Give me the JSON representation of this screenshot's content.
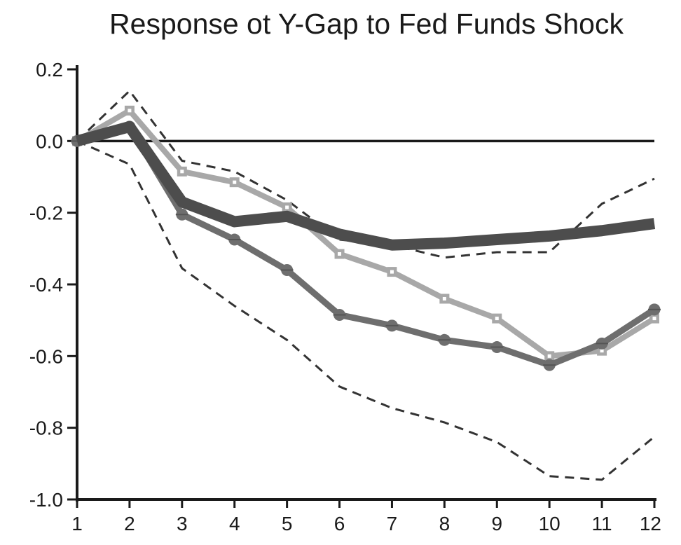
{
  "chart_data": {
    "type": "line",
    "title": "Response ot Y-Gap to Fed Funds Shock",
    "xlabel": "",
    "ylabel": "",
    "x": [
      1,
      2,
      3,
      4,
      5,
      6,
      7,
      8,
      9,
      10,
      11,
      12
    ],
    "xlim": [
      1,
      12
    ],
    "ylim": [
      -1.0,
      0.2
    ],
    "y_ticks": [
      "0.2",
      "0.0",
      "-0.2",
      "-0.4",
      "-0.6",
      "-0.8",
      "-1.0"
    ],
    "x_ticks": [
      "1",
      "2",
      "3",
      "4",
      "5",
      "6",
      "7",
      "8",
      "9",
      "10",
      "11",
      "12"
    ],
    "reference_line": 0.0,
    "grid": false,
    "legend": "none",
    "series": [
      {
        "style": "dashed-upper-band",
        "color": "#333333",
        "values": [
          0.0,
          0.14,
          -0.055,
          -0.085,
          -0.165,
          -0.275,
          -0.29,
          -0.325,
          -0.31,
          -0.31,
          -0.175,
          -0.105
        ]
      },
      {
        "style": "dashed-lower-band",
        "color": "#333333",
        "values": [
          0.0,
          -0.065,
          -0.355,
          -0.46,
          -0.555,
          -0.685,
          -0.745,
          -0.785,
          -0.84,
          -0.935,
          -0.945,
          -0.825
        ]
      },
      {
        "style": "light-gray-square-markers",
        "color": "#a8a8a8",
        "values": [
          0.0,
          0.085,
          -0.085,
          -0.115,
          -0.185,
          -0.315,
          -0.365,
          -0.44,
          -0.495,
          -0.6,
          -0.585,
          -0.495
        ]
      },
      {
        "style": "medium-gray-circle-markers",
        "color": "#6e6e6e",
        "values": [
          0.0,
          0.04,
          -0.205,
          -0.275,
          -0.36,
          -0.485,
          -0.515,
          -0.555,
          -0.575,
          -0.625,
          -0.565,
          -0.47
        ]
      },
      {
        "style": "thick-dark-gray",
        "color": "#4d4d4d",
        "values": [
          0.0,
          0.04,
          -0.17,
          -0.225,
          -0.21,
          -0.26,
          -0.29,
          -0.285,
          -0.275,
          -0.265,
          -0.25,
          -0.23
        ]
      }
    ]
  }
}
